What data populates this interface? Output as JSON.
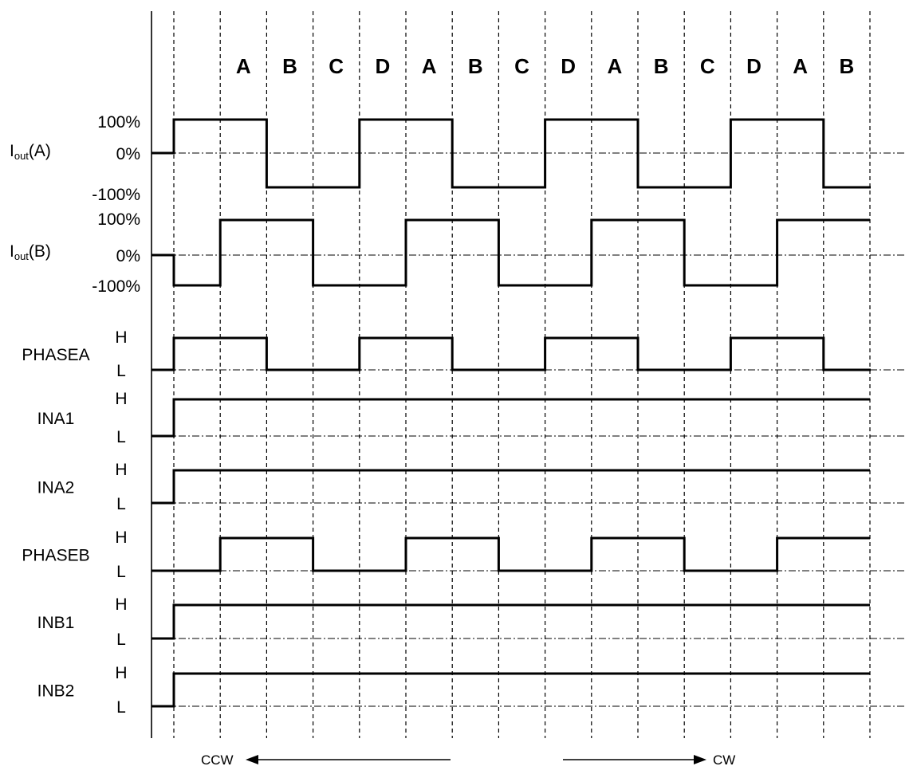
{
  "steps": [
    "A",
    "B",
    "C",
    "D",
    "A",
    "B",
    "C",
    "D",
    "A",
    "B",
    "C",
    "D",
    "A",
    "B"
  ],
  "level_labels": {
    "hundred": "100%",
    "zero": "0%",
    "neg_hundred": "-100%",
    "high": "H",
    "low": "L"
  },
  "current_signals": [
    {
      "name": "I",
      "subscript": "out",
      "suffix": "(A)",
      "waveform": [
        1,
        1,
        -1,
        -1,
        1,
        1,
        -1,
        -1,
        1,
        1,
        -1,
        -1,
        1,
        1,
        -1,
        -1
      ]
    },
    {
      "name": "I",
      "subscript": "out",
      "suffix": "(B)",
      "waveform": [
        -1,
        1,
        1,
        -1,
        -1,
        1,
        1,
        -1,
        -1,
        1,
        1,
        -1,
        -1,
        1,
        1
      ]
    }
  ],
  "logic_signals": [
    {
      "name": "PHASEA",
      "waveform": [
        1,
        1,
        0,
        0,
        1,
        1,
        0,
        0,
        1,
        1,
        0,
        0,
        1,
        1,
        0,
        0
      ]
    },
    {
      "name": "INA1",
      "waveform": [
        1,
        1,
        1,
        1,
        1,
        1,
        1,
        1,
        1,
        1,
        1,
        1,
        1,
        1,
        1
      ]
    },
    {
      "name": "INA2",
      "waveform": [
        1,
        1,
        1,
        1,
        1,
        1,
        1,
        1,
        1,
        1,
        1,
        1,
        1,
        1,
        1
      ]
    },
    {
      "name": "PHASEB",
      "waveform": [
        0,
        1,
        1,
        0,
        0,
        1,
        1,
        0,
        0,
        1,
        1,
        0,
        0,
        1,
        1
      ]
    },
    {
      "name": "INB1",
      "waveform": [
        1,
        1,
        1,
        1,
        1,
        1,
        1,
        1,
        1,
        1,
        1,
        1,
        1,
        1,
        1
      ]
    },
    {
      "name": "INB2",
      "waveform": [
        1,
        1,
        1,
        1,
        1,
        1,
        1,
        1,
        1,
        1,
        1,
        1,
        1,
        1,
        1
      ]
    }
  ],
  "direction": {
    "ccw": "CCW",
    "cw": "CW"
  }
}
